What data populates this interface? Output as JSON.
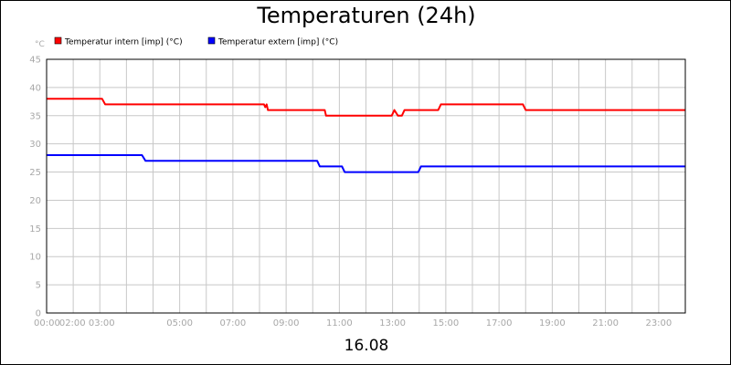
{
  "chart_data": {
    "type": "line",
    "title": "Temperaturen (24h)",
    "ylabel": "°C",
    "xlabel": "16.08",
    "ylim": [
      0,
      45
    ],
    "yticks": [
      0,
      5,
      10,
      15,
      20,
      25,
      30,
      35,
      40,
      45
    ],
    "xlim": [
      "00:00",
      "24:00"
    ],
    "xtick_labels": [
      "00:00",
      "02:00 03:00",
      "05:00",
      "07:00",
      "09:00",
      "11:00",
      "13:00",
      "15:00",
      "17:00",
      "19:00",
      "21:00",
      "23:00"
    ],
    "grid": true,
    "legend_position": "top-left",
    "series": [
      {
        "name": "Temperatur intern [imp] (°C)",
        "color": "#ff0000",
        "points": [
          [
            "00:00",
            38
          ],
          [
            "02:05",
            38
          ],
          [
            "02:12",
            37
          ],
          [
            "08:10",
            37
          ],
          [
            "08:13",
            36.5
          ],
          [
            "08:16",
            37
          ],
          [
            "08:19",
            36
          ],
          [
            "10:27",
            36
          ],
          [
            "10:30",
            35
          ],
          [
            "12:58",
            35
          ],
          [
            "13:04",
            36
          ],
          [
            "13:12",
            35
          ],
          [
            "13:21",
            35
          ],
          [
            "13:27",
            36
          ],
          [
            "14:43",
            36
          ],
          [
            "14:49",
            37
          ],
          [
            "17:54",
            37
          ],
          [
            "18:00",
            36
          ],
          [
            "23:59",
            36
          ]
        ]
      },
      {
        "name": "Temperatur extern [imp] (°C)",
        "color": "#0000ff",
        "points": [
          [
            "00:00",
            28
          ],
          [
            "03:35",
            28
          ],
          [
            "03:43",
            27
          ],
          [
            "10:10",
            27
          ],
          [
            "10:16",
            26
          ],
          [
            "11:06",
            26
          ],
          [
            "11:12",
            25
          ],
          [
            "13:58",
            25
          ],
          [
            "14:04",
            26
          ],
          [
            "23:59",
            26
          ]
        ]
      }
    ]
  }
}
